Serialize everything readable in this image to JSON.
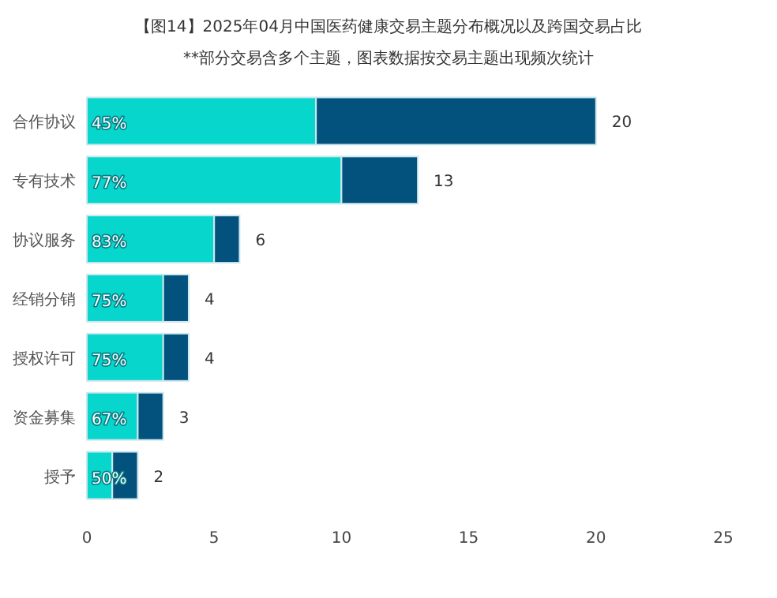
{
  "chart_data": {
    "type": "bar",
    "orientation": "horizontal",
    "stacked": true,
    "title": "【图14】2025年04月中国医药健康交易主题分布概况以及跨国交易占比",
    "subtitle": "**部分交易含多个主题，图表数据按交易主题出现频次统计",
    "categories": [
      "合作协议",
      "专有技术",
      "协议服务",
      "经销分销",
      "授权许可",
      "资金募集",
      "授予"
    ],
    "series": [
      {
        "color": "#06d6cc",
        "values": [
          9,
          10,
          5,
          3,
          3,
          2,
          1
        ]
      },
      {
        "color": "#03527e",
        "values": [
          11,
          3,
          1,
          1,
          1,
          1,
          1
        ]
      }
    ],
    "totals": [
      "20",
      "13",
      "6",
      "4",
      "4",
      "3",
      "2"
    ],
    "annotations": [
      {
        "text": "45%",
        "y": "合作协议"
      },
      {
        "text": "77%",
        "y": "专有技术"
      },
      {
        "text": "83%",
        "y": "协议服务"
      },
      {
        "text": "75%",
        "y": "经销分销"
      },
      {
        "text": "75%",
        "y": "授权许可"
      },
      {
        "text": "67%",
        "y": "资金募集"
      },
      {
        "text": "50%",
        "y": "授予"
      }
    ],
    "xlim": [
      0,
      25
    ],
    "xticks": [
      0,
      5,
      10,
      15,
      20,
      25
    ],
    "grid": false
  }
}
